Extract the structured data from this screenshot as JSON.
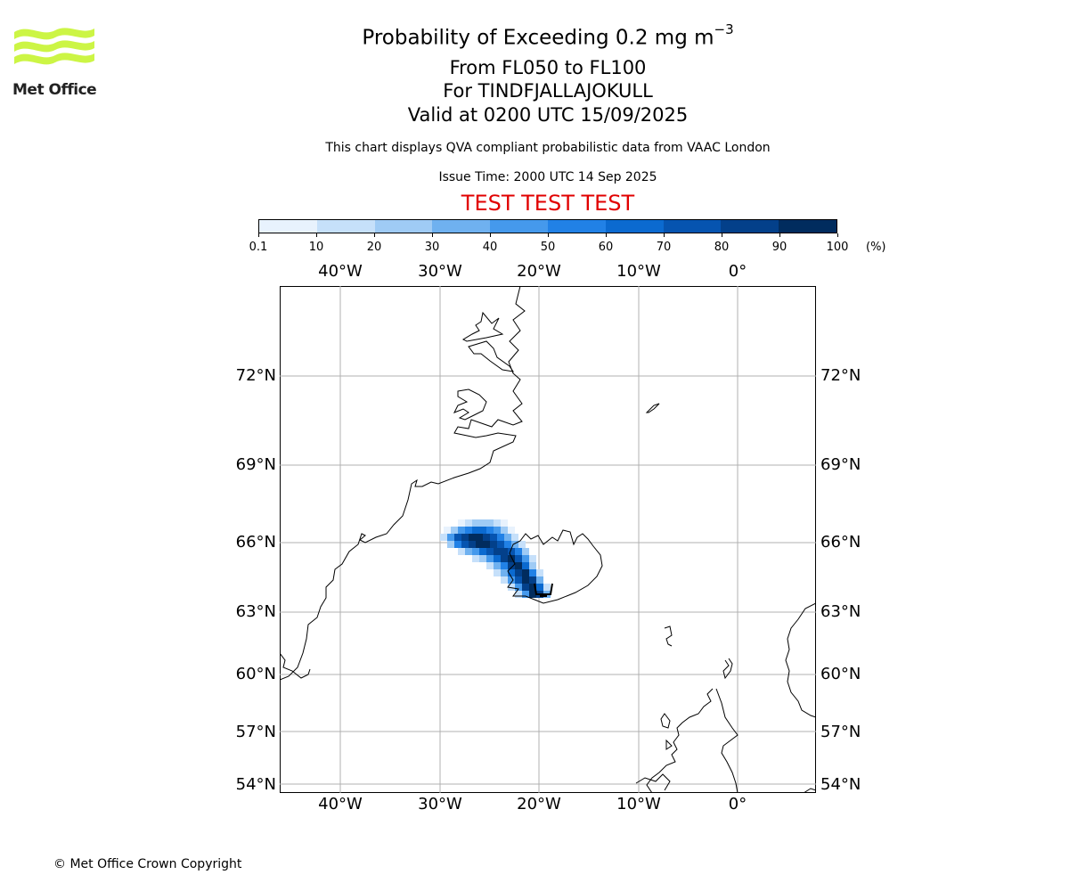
{
  "header": {
    "title_main": "Probability of Exceeding 0.2 mg m",
    "title_sup": "−3",
    "flight_levels": "From FL050 to FL100",
    "volcano": "For TINDFJALLAJOKULL",
    "valid": "Valid at 0200 UTC 15/09/2025",
    "description": "This chart displays QVA compliant probabilistic data from VAAC London",
    "issue_time": "Issue Time: 2000 UTC 14 Sep 2025",
    "test_banner": "TEST TEST TEST"
  },
  "logo": {
    "icon": "met-office-waves-logo",
    "text": "Met Office",
    "color": "#ccf545"
  },
  "colorbar": {
    "ticks": [
      "0.1",
      "10",
      "20",
      "30",
      "40",
      "50",
      "60",
      "70",
      "80",
      "90",
      "100"
    ],
    "unit": "(%)",
    "colors": [
      "#e8f2fd",
      "#c6e0fa",
      "#9fcbf5",
      "#6fb1f0",
      "#4599ec",
      "#2181e6",
      "#0b6ad0",
      "#0654b0",
      "#03408a",
      "#012c5e"
    ]
  },
  "map": {
    "lon_labels": [
      "40°W",
      "30°W",
      "20°W",
      "10°W",
      "0°"
    ],
    "lat_labels": [
      "72°N",
      "69°N",
      "66°N",
      "63°N",
      "60°N",
      "57°N",
      "54°N"
    ],
    "icons": {
      "volcano_marker": "volcano-marker-icon"
    }
  },
  "footer": {
    "copyright": "© Met Office Crown Copyright"
  }
}
